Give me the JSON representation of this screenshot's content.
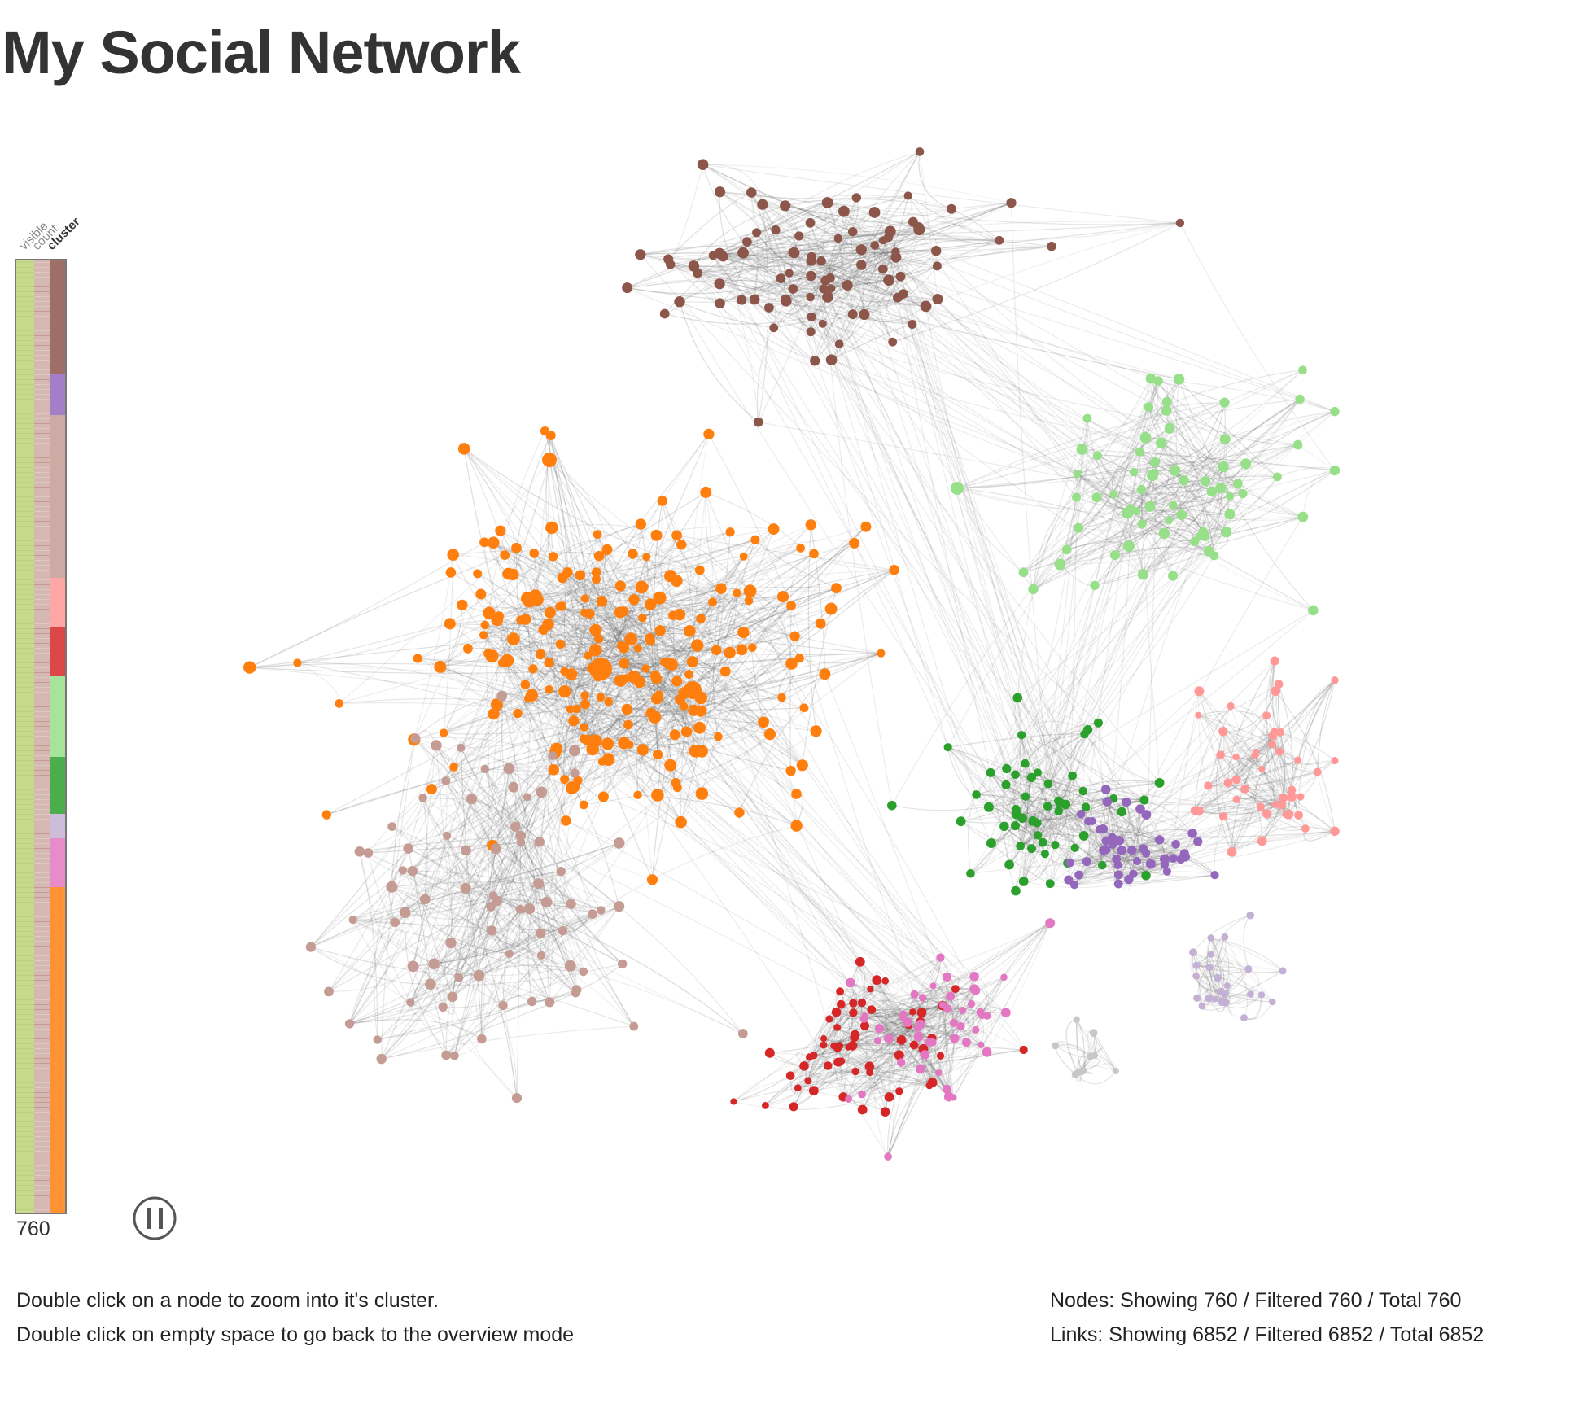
{
  "title": "My Social Network",
  "side_bar": {
    "column_labels": [
      "visible",
      "count",
      "cluster"
    ],
    "active_column": "cluster",
    "count_value": "760",
    "cluster_segment_colors": [
      "#8c564b",
      "#9467bd",
      "#c49c94",
      "#ff9896",
      "#d62728",
      "#98df8a",
      "#2ca02c",
      "#c5b0d5",
      "#e377c2",
      "#ff7f0e"
    ]
  },
  "pause_button": {
    "icon": "pause-icon"
  },
  "help": {
    "line1": "Double click on a node to zoom into it's cluster.",
    "line2": "Double click on empty space to go back to the overview mode"
  },
  "stats": {
    "nodes": "Nodes: Showing 760 / Filtered 760 / Total 760",
    "links": "Links: Showing 6852 / Filtered 6852 / Total 6852"
  },
  "clusters": [
    {
      "id": "brown",
      "color": "#8c564b"
    },
    {
      "id": "orange",
      "color": "#ff7f0e"
    },
    {
      "id": "light-green",
      "color": "#98df8a"
    },
    {
      "id": "green",
      "color": "#2ca02c"
    },
    {
      "id": "purple",
      "color": "#9467bd"
    },
    {
      "id": "salmon",
      "color": "#ff9896"
    },
    {
      "id": "red",
      "color": "#d62728"
    },
    {
      "id": "pink",
      "color": "#e377c2"
    },
    {
      "id": "lavender",
      "color": "#c5b0d5"
    },
    {
      "id": "tan",
      "color": "#c49c94"
    },
    {
      "id": "gray",
      "color": "#c7c7c7"
    }
  ],
  "link_color": "#666666"
}
